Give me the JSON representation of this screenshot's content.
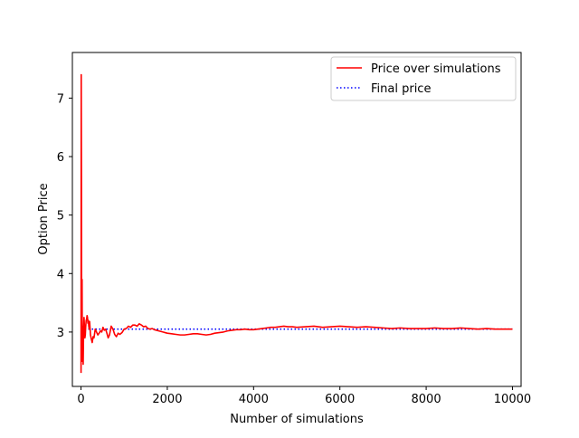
{
  "chart_data": {
    "type": "line",
    "title": "",
    "xlabel": "Number of simulations",
    "ylabel": "Option Price",
    "xlim": [
      -200,
      10200
    ],
    "ylim": [
      2.07,
      7.78
    ],
    "xticks": [
      0,
      2000,
      4000,
      6000,
      8000,
      10000
    ],
    "xtick_labels": [
      "0",
      "2000",
      "4000",
      "6000",
      "8000",
      "10000"
    ],
    "yticks": [
      3,
      4,
      5,
      6,
      7
    ],
    "ytick_labels": [
      "3",
      "4",
      "5",
      "6",
      "7"
    ],
    "grid": false,
    "legend_position": "top-right",
    "series": [
      {
        "name": "Price over simulations",
        "color": "#ff0000",
        "style": "solid",
        "x": [
          1,
          5,
          10,
          15,
          20,
          25,
          30,
          35,
          40,
          45,
          50,
          60,
          70,
          80,
          90,
          100,
          110,
          120,
          130,
          140,
          150,
          160,
          170,
          180,
          190,
          200,
          220,
          240,
          260,
          280,
          300,
          330,
          360,
          390,
          420,
          450,
          480,
          510,
          540,
          570,
          600,
          630,
          660,
          700,
          740,
          780,
          820,
          860,
          900,
          950,
          1000,
          1050,
          1100,
          1150,
          1200,
          1250,
          1300,
          1350,
          1400,
          1450,
          1500,
          1550,
          1600,
          1650,
          1700,
          1750,
          1800,
          1850,
          1900,
          1950,
          2000,
          2100,
          2200,
          2300,
          2400,
          2500,
          2600,
          2700,
          2800,
          2900,
          3000,
          3100,
          3200,
          3300,
          3400,
          3500,
          3600,
          3700,
          3800,
          3900,
          4000,
          4100,
          4200,
          4300,
          4400,
          4500,
          4600,
          4700,
          4800,
          4900,
          5000,
          5200,
          5400,
          5600,
          5800,
          6000,
          6200,
          6400,
          6600,
          6800,
          7000,
          7200,
          7400,
          7600,
          7800,
          8000,
          8200,
          8400,
          8600,
          8800,
          9000,
          9200,
          9400,
          9600,
          9800,
          10000
        ],
        "y": [
          2.3,
          7.4,
          5.6,
          3.3,
          2.6,
          3.9,
          2.5,
          3.1,
          2.7,
          2.9,
          2.45,
          3.05,
          3.25,
          3.1,
          2.9,
          2.95,
          3.1,
          3.2,
          3.22,
          3.28,
          3.25,
          3.15,
          3.2,
          3.1,
          3.05,
          3.18,
          2.95,
          2.88,
          2.82,
          2.92,
          2.9,
          3.05,
          3.0,
          2.95,
          2.98,
          3.02,
          3.0,
          3.08,
          3.03,
          3.05,
          2.98,
          2.9,
          2.95,
          3.1,
          3.05,
          2.96,
          2.92,
          2.98,
          2.96,
          2.99,
          3.05,
          3.06,
          3.1,
          3.08,
          3.12,
          3.12,
          3.1,
          3.14,
          3.12,
          3.09,
          3.1,
          3.06,
          3.05,
          3.06,
          3.04,
          3.03,
          3.02,
          3.01,
          3.0,
          2.99,
          2.98,
          2.97,
          2.96,
          2.95,
          2.95,
          2.96,
          2.97,
          2.97,
          2.96,
          2.95,
          2.96,
          2.98,
          2.99,
          3.0,
          3.02,
          3.03,
          3.04,
          3.04,
          3.05,
          3.04,
          3.04,
          3.05,
          3.06,
          3.07,
          3.08,
          3.08,
          3.09,
          3.1,
          3.09,
          3.09,
          3.08,
          3.09,
          3.1,
          3.08,
          3.09,
          3.1,
          3.09,
          3.08,
          3.09,
          3.08,
          3.07,
          3.06,
          3.07,
          3.06,
          3.06,
          3.06,
          3.07,
          3.06,
          3.06,
          3.07,
          3.06,
          3.05,
          3.06,
          3.05,
          3.05,
          3.05
        ]
      },
      {
        "name": "Final price",
        "color": "#0000ff",
        "style": "dotted",
        "x": [
          0,
          10000
        ],
        "y": [
          3.05,
          3.05
        ]
      }
    ]
  }
}
